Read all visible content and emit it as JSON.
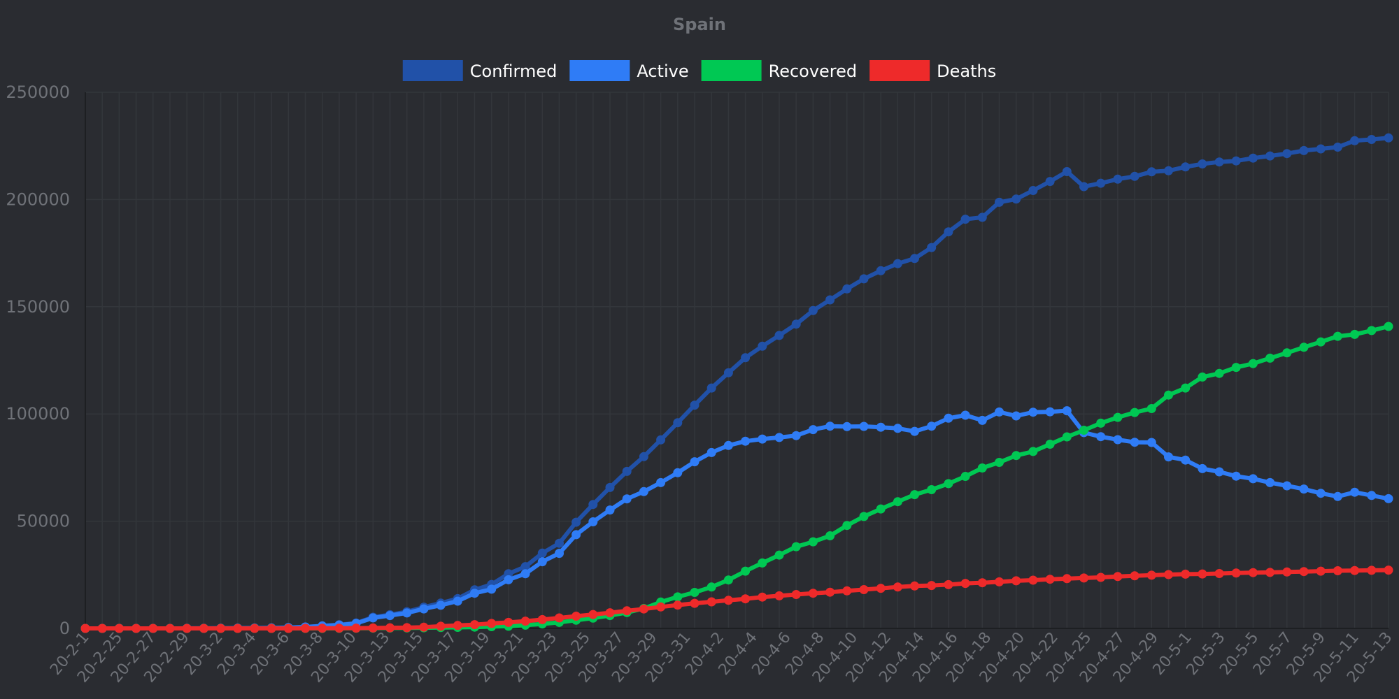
{
  "chart_data": {
    "type": "line",
    "title": "Spain",
    "legend_position": "top-center",
    "grid": true,
    "ylim": [
      0,
      250000
    ],
    "yticks": [
      0,
      50000,
      100000,
      150000,
      200000,
      250000
    ],
    "x_tick_labels": [
      "20-2-1",
      "20-2-25",
      "20-2-27",
      "20-2-29",
      "20-3-2",
      "20-3-4",
      "20-3-6",
      "20-3-8",
      "20-3-10",
      "20-3-13",
      "20-3-15",
      "20-3-17",
      "20-3-19",
      "20-3-21",
      "20-3-23",
      "20-3-25",
      "20-3-27",
      "20-3-29",
      "20-3-31",
      "20-4-2",
      "20-4-4",
      "20-4-6",
      "20-4-8",
      "20-4-10",
      "20-4-12",
      "20-4-14",
      "20-4-16",
      "20-4-18",
      "20-4-20",
      "20-4-22",
      "20-4-25",
      "20-4-27",
      "20-4-29",
      "20-5-1",
      "20-5-3",
      "20-5-5",
      "20-5-7",
      "20-5-9",
      "20-5-11",
      "20-5-13"
    ],
    "series": [
      {
        "name": "Confirmed",
        "color": "#2151a8",
        "values": [
          1,
          2,
          2,
          2,
          2,
          12,
          32,
          45,
          80,
          120,
          165,
          230,
          400,
          700,
          1200,
          1700,
          2500,
          5200,
          6400,
          7800,
          9900,
          11800,
          13900,
          18000,
          20500,
          25500,
          28800,
          35100,
          39700,
          49500,
          57800,
          65700,
          73200,
          80100,
          87900,
          95900,
          104100,
          112100,
          119200,
          126200,
          131600,
          136600,
          141900,
          148200,
          153200,
          158300,
          163000,
          166800,
          170100,
          172500,
          177600,
          184900,
          190800,
          191700,
          198700,
          200200,
          204200,
          208400,
          213000,
          206000,
          207600,
          209500,
          210800,
          212900,
          213400,
          215200,
          216600,
          217500,
          218000,
          219300,
          220300,
          221400,
          222800,
          223600,
          224400,
          227400,
          228000,
          228700
        ]
      },
      {
        "name": "Active",
        "color": "#2f7cf6",
        "values": [
          1,
          2,
          2,
          2,
          2,
          12,
          32,
          45,
          80,
          115,
          155,
          210,
          370,
          650,
          1150,
          1600,
          2300,
          4900,
          6000,
          7200,
          9100,
          10800,
          12700,
          16400,
          18300,
          22700,
          25500,
          31100,
          35000,
          43700,
          49700,
          55200,
          60400,
          63800,
          68000,
          72600,
          77700,
          82000,
          85300,
          87300,
          88300,
          89000,
          89900,
          92700,
          94300,
          94100,
          94200,
          93800,
          93300,
          91900,
          94300,
          98000,
          99400,
          97000,
          100900,
          99100,
          100800,
          101000,
          101500,
          91300,
          89400,
          88000,
          86800,
          86700,
          80000,
          78500,
          74500,
          73000,
          71000,
          69800,
          68000,
          66500,
          65000,
          63000,
          61500,
          63500,
          62000,
          60500
        ]
      },
      {
        "name": "Recovered",
        "color": "#00c853",
        "values": [
          0,
          0,
          0,
          0,
          0,
          0,
          0,
          0,
          0,
          0,
          0,
          0,
          0,
          0,
          0,
          20,
          50,
          100,
          150,
          200,
          300,
          400,
          500,
          600,
          800,
          1000,
          1500,
          2100,
          2800,
          3800,
          4800,
          6000,
          7400,
          9300,
          12300,
          14700,
          16800,
          19300,
          22600,
          26700,
          30500,
          34200,
          38100,
          40400,
          43200,
          48000,
          52200,
          55700,
          59100,
          62400,
          64700,
          67500,
          70900,
          74800,
          77400,
          80600,
          82500,
          85900,
          89300,
          92400,
          95700,
          98400,
          100700,
          102500,
          108800,
          112100,
          117200,
          118900,
          121700,
          123500,
          126000,
          128500,
          131100,
          133600,
          136200,
          137100,
          138900,
          140800
        ]
      },
      {
        "name": "Deaths",
        "color": "#ee2a2a",
        "values": [
          0,
          0,
          0,
          0,
          0,
          0,
          0,
          0,
          0,
          0,
          1,
          3,
          10,
          35,
          50,
          85,
          140,
          200,
          290,
          350,
          600,
          1000,
          1380,
          1750,
          2300,
          2800,
          3400,
          4100,
          4900,
          5700,
          6500,
          7300,
          8200,
          9050,
          10000,
          10900,
          11700,
          12400,
          13100,
          13800,
          14600,
          15200,
          15800,
          16400,
          16900,
          17500,
          18100,
          18700,
          19300,
          19800,
          20000,
          20400,
          21000,
          21300,
          21700,
          22200,
          22500,
          22900,
          23200,
          23500,
          23800,
          24200,
          24500,
          24800,
          25100,
          25300,
          25400,
          25600,
          25800,
          26000,
          26100,
          26300,
          26500,
          26700,
          26900,
          27000,
          27100,
          27200
        ]
      }
    ]
  }
}
